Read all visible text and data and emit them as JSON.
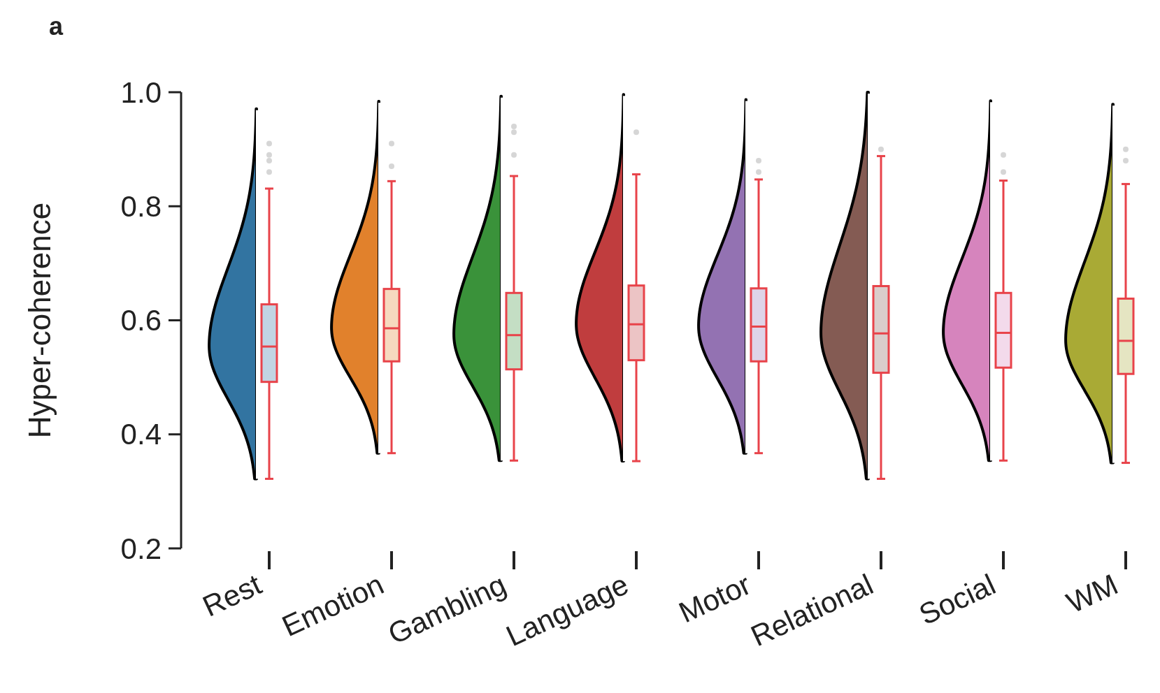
{
  "chart_data": {
    "type": "box",
    "title": "a",
    "ylabel": "Hyper-coherence",
    "categories": [
      "Rest",
      "Emotion",
      "Gambling",
      "Language",
      "Motor",
      "Relational",
      "Social",
      "WM"
    ],
    "color": "#e8434a",
    "colors": [
      "#3274a1",
      "#e1812c",
      "#3a923a",
      "#c03d3e",
      "#9372b2",
      "#845b53",
      "#d684bd",
      "#a9aa35"
    ],
    "boxes": [
      {
        "low": 0.322,
        "q1": 0.492,
        "median": 0.554,
        "q3": 0.628,
        "high": 0.831,
        "outliers": [
          0.86,
          0.88,
          0.89,
          0.91
        ]
      },
      {
        "low": 0.367,
        "q1": 0.528,
        "median": 0.586,
        "q3": 0.655,
        "high": 0.844,
        "outliers": [
          0.87,
          0.91
        ]
      },
      {
        "low": 0.354,
        "q1": 0.514,
        "median": 0.574,
        "q3": 0.648,
        "high": 0.853,
        "outliers": [
          0.89,
          0.93,
          0.94
        ]
      },
      {
        "low": 0.353,
        "q1": 0.53,
        "median": 0.593,
        "q3": 0.661,
        "high": 0.856,
        "outliers": [
          0.93
        ]
      },
      {
        "low": 0.367,
        "q1": 0.528,
        "median": 0.589,
        "q3": 0.656,
        "high": 0.847,
        "outliers": [
          0.86,
          0.88
        ]
      },
      {
        "low": 0.322,
        "q1": 0.508,
        "median": 0.577,
        "q3": 0.66,
        "high": 0.888,
        "outliers": [
          0.9
        ]
      },
      {
        "low": 0.354,
        "q1": 0.517,
        "median": 0.578,
        "q3": 0.648,
        "high": 0.845,
        "outliers": [
          0.86,
          0.89
        ]
      },
      {
        "low": 0.35,
        "q1": 0.506,
        "median": 0.564,
        "q3": 0.638,
        "high": 0.839,
        "outliers": [
          0.88,
          0.9
        ]
      }
    ],
    "ylim": [
      0.2,
      1.0
    ],
    "yticks": [
      0.2,
      0.4,
      0.6,
      0.8,
      {
        "value": 1,
        "label": "1.0"
      }
    ],
    "grid": false
  }
}
